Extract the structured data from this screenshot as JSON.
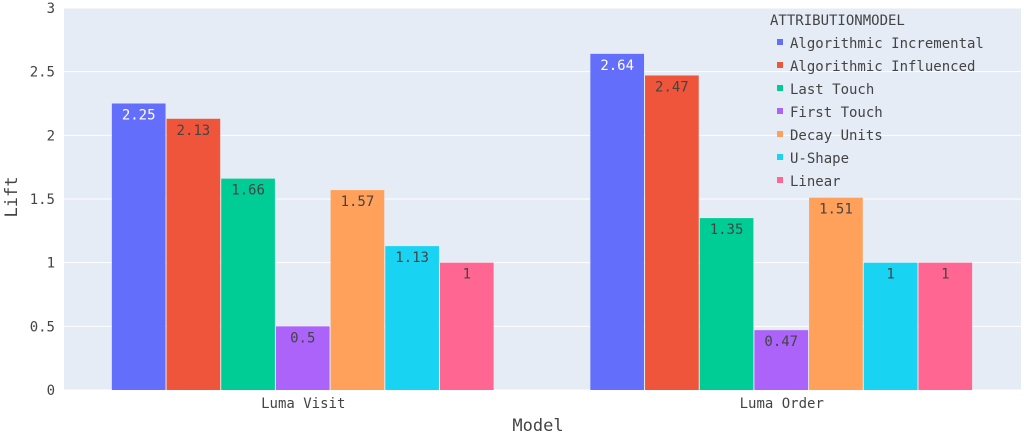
{
  "chart_data": {
    "type": "bar",
    "title": "",
    "xlabel": "Model",
    "ylabel": "Lift",
    "ylim": [
      0,
      3
    ],
    "yticks": [
      {
        "v": 0,
        "label": "0"
      },
      {
        "v": 0.5,
        "label": "0.5"
      },
      {
        "v": 1,
        "label": "1"
      },
      {
        "v": 1.5,
        "label": "1.5"
      },
      {
        "v": 2,
        "label": "2"
      },
      {
        "v": 2.5,
        "label": "2.5"
      },
      {
        "v": 3,
        "label": "3"
      }
    ],
    "grid": true,
    "legend_title": "ATTRIBUTIONMODEL",
    "legend_position": "top-right",
    "categories": [
      "Luma Visit",
      "Luma Order"
    ],
    "series": [
      {
        "name": "Algorithmic Incremental",
        "color": "#636efa",
        "label_color": "#ffffff",
        "values": [
          2.25,
          2.64
        ],
        "labels": [
          "2.25",
          "2.64"
        ]
      },
      {
        "name": "Algorithmic Influenced",
        "color": "#ef553b",
        "label_color": "#444444",
        "values": [
          2.13,
          2.47
        ],
        "labels": [
          "2.13",
          "2.47"
        ]
      },
      {
        "name": "Last Touch",
        "color": "#00cc96",
        "label_color": "#444444",
        "values": [
          1.66,
          1.35
        ],
        "labels": [
          "1.66",
          "1.35"
        ]
      },
      {
        "name": "First Touch",
        "color": "#ab63fa",
        "label_color": "#444444",
        "values": [
          0.5,
          0.47
        ],
        "labels": [
          "0.5",
          "0.47"
        ]
      },
      {
        "name": "Decay Units",
        "color": "#ffa15a",
        "label_color": "#444444",
        "values": [
          1.57,
          1.51
        ],
        "labels": [
          "1.57",
          "1.51"
        ]
      },
      {
        "name": "U-Shape",
        "color": "#19d3f3",
        "label_color": "#444444",
        "values": [
          1.13,
          1.0
        ],
        "labels": [
          "1.13",
          "1"
        ]
      },
      {
        "name": "Linear",
        "color": "#ff6692",
        "label_color": "#444444",
        "values": [
          1.0,
          1.0
        ],
        "labels": [
          "1",
          "1"
        ]
      }
    ],
    "colors": {
      "plot_background": "#e5ecf6",
      "gridline": "#ffffff",
      "text": "#444444"
    }
  }
}
